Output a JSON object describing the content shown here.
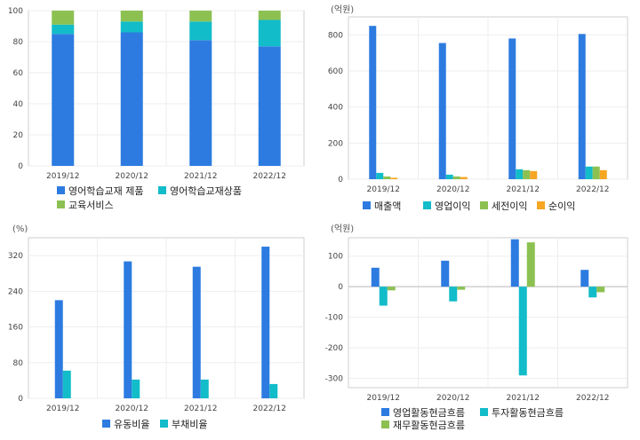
{
  "chart_data": [
    {
      "type": "bar",
      "stacked": true,
      "categories": [
        "2019/12",
        "2020/12",
        "2021/12",
        "2022/12"
      ],
      "series": [
        {
          "name": "영어학습교재 제품",
          "color": "#2d7be0",
          "values": [
            85,
            86,
            81,
            77
          ]
        },
        {
          "name": "영어학습교재상품",
          "color": "#12bcc9",
          "values": [
            6,
            7,
            12,
            17
          ]
        },
        {
          "name": "교육서비스",
          "color": "#8cc152",
          "values": [
            9,
            7,
            7,
            6
          ]
        }
      ],
      "ylim": [
        0,
        100
      ],
      "yticks": [
        0,
        20,
        40,
        60,
        80,
        100
      ],
      "unit": "",
      "legend": "bottom"
    },
    {
      "type": "bar",
      "categories": [
        "2019/12",
        "2020/12",
        "2021/12",
        "2022/12"
      ],
      "series": [
        {
          "name": "매출액",
          "color": "#2d7be0",
          "values": [
            850,
            755,
            780,
            805
          ]
        },
        {
          "name": "영업이익",
          "color": "#12bcc9",
          "values": [
            35,
            25,
            55,
            70
          ]
        },
        {
          "name": "세전이익",
          "color": "#8cc152",
          "values": [
            15,
            15,
            50,
            70
          ]
        },
        {
          "name": "순이익",
          "color": "#f5a623",
          "values": [
            8,
            12,
            45,
            50
          ]
        }
      ],
      "ylim": [
        0,
        900
      ],
      "yticks": [
        0,
        200,
        400,
        600,
        800
      ],
      "unit": "(억원)",
      "legend": "bottom"
    },
    {
      "type": "bar",
      "categories": [
        "2019/12",
        "2020/12",
        "2021/12",
        "2022/12"
      ],
      "series": [
        {
          "name": "유동비율",
          "color": "#2d7be0",
          "values": [
            220,
            307,
            295,
            340
          ]
        },
        {
          "name": "부채비율",
          "color": "#12bcc9",
          "values": [
            62,
            42,
            42,
            32
          ]
        }
      ],
      "ylim": [
        0,
        360
      ],
      "yticks": [
        0,
        80,
        160,
        240,
        320
      ],
      "unit": "(%)",
      "legend": "bottom"
    },
    {
      "type": "bar",
      "categories": [
        "2019/12",
        "2020/12",
        "2021/12",
        "2022/12"
      ],
      "series": [
        {
          "name": "영업활동현금흐름",
          "color": "#2d7be0",
          "values": [
            62,
            85,
            155,
            55
          ]
        },
        {
          "name": "투자활동현금흐름",
          "color": "#12bcc9",
          "values": [
            -62,
            -48,
            -290,
            -35
          ]
        },
        {
          "name": "재무활동현금흐름",
          "color": "#8cc152",
          "values": [
            -12,
            -10,
            145,
            -18
          ]
        }
      ],
      "ylim": [
        -330,
        160
      ],
      "yticks": [
        -300,
        -200,
        -100,
        0,
        100
      ],
      "unit": "(억원)",
      "legend": "bottom"
    }
  ]
}
